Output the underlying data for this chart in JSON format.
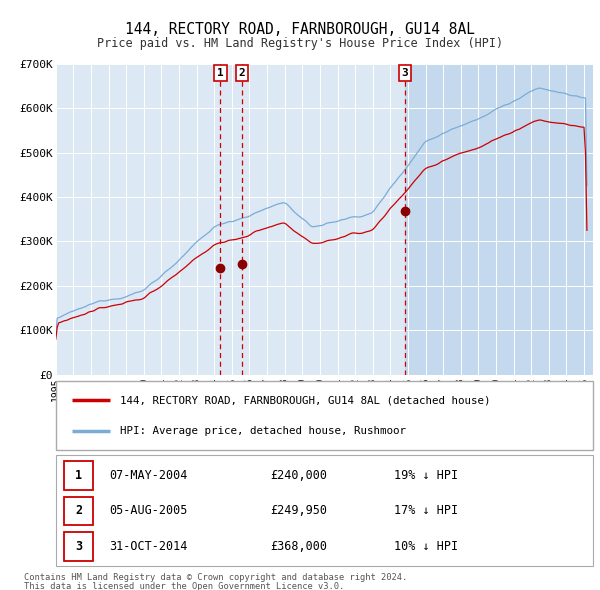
{
  "title_line1": "144, RECTORY ROAD, FARNBOROUGH, GU14 8AL",
  "title_line2": "Price paid vs. HM Land Registry's House Price Index (HPI)",
  "property_label": "144, RECTORY ROAD, FARNBOROUGH, GU14 8AL (detached house)",
  "hpi_label": "HPI: Average price, detached house, Rushmoor",
  "sale_events": [
    {
      "num": 1,
      "date": "07-MAY-2004",
      "price": 240000,
      "pct": "19%",
      "direction": "↓"
    },
    {
      "num": 2,
      "date": "05-AUG-2005",
      "price": 249950,
      "pct": "17%",
      "direction": "↓"
    },
    {
      "num": 3,
      "date": "31-OCT-2014",
      "price": 368000,
      "pct": "10%",
      "direction": "↓"
    }
  ],
  "sale_dates_decimal": [
    2004.354,
    2005.587,
    2014.831
  ],
  "sale_prices": [
    240000,
    249950,
    368000
  ],
  "ylim": [
    0,
    700000
  ],
  "yticks": [
    0,
    100000,
    200000,
    300000,
    400000,
    500000,
    600000,
    700000
  ],
  "ytick_labels": [
    "£0",
    "£100K",
    "£200K",
    "£300K",
    "£400K",
    "£500K",
    "£600K",
    "£700K"
  ],
  "xstart": 1995,
  "xend": 2025,
  "property_color": "#cc0000",
  "hpi_color": "#7aacd6",
  "vline_color": "#cc0000",
  "plot_bg_color": "#dde8f5",
  "grid_color": "#ffffff",
  "span_color": "#c5d9ee",
  "footer_line1": "Contains HM Land Registry data © Crown copyright and database right 2024.",
  "footer_line2": "This data is licensed under the Open Government Licence v3.0."
}
